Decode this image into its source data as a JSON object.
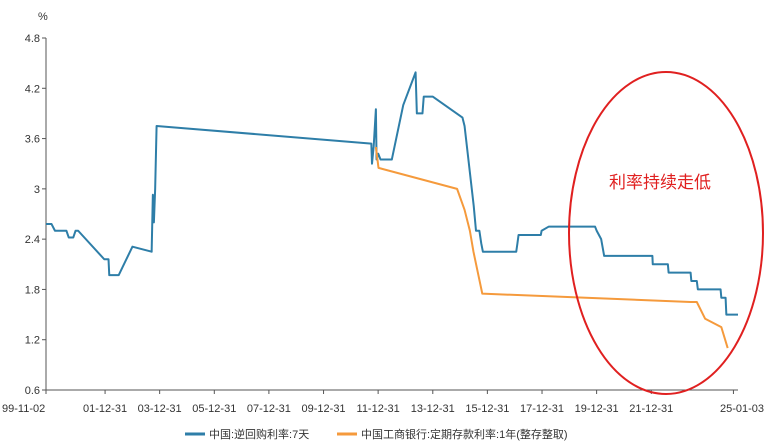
{
  "chart_data": {
    "type": "line",
    "y_unit": "%",
    "ylim": [
      0.6,
      4.8
    ],
    "y_ticks": [
      "0.6",
      "1.2",
      "1.8",
      "2.4",
      "3",
      "3.6",
      "4.2",
      "4.8"
    ],
    "x_range": [
      "1999-11-02",
      "2025-03-05"
    ],
    "x_ticks": [
      {
        "label": "99-11-02",
        "date": "1999-11-02"
      },
      {
        "label": "01-12-31",
        "date": "2001-12-31"
      },
      {
        "label": "03-12-31",
        "date": "2003-12-31"
      },
      {
        "label": "05-12-31",
        "date": "2005-12-31"
      },
      {
        "label": "07-12-31",
        "date": "2007-12-31"
      },
      {
        "label": "09-12-31",
        "date": "2009-12-31"
      },
      {
        "label": "11-12-31",
        "date": "2011-12-31"
      },
      {
        "label": "13-12-31",
        "date": "2013-12-31"
      },
      {
        "label": "15-12-31",
        "date": "2015-12-31"
      },
      {
        "label": "17-12-31",
        "date": "2017-12-31"
      },
      {
        "label": "19-12-31",
        "date": "2019-12-31"
      },
      {
        "label": "21-12-31",
        "date": "2021-12-31"
      },
      {
        "label": "25-01-03",
        "date": "2025-01-03"
      }
    ],
    "grid": false,
    "legend_position": "bottom-center",
    "series": [
      {
        "name": "中国:逆回购利率:7天",
        "color": "#2e7ea8",
        "points": [
          [
            "1999-11-02",
            2.58
          ],
          [
            "2000-01-15",
            2.58
          ],
          [
            "2000-03-01",
            2.5
          ],
          [
            "2000-08-01",
            2.5
          ],
          [
            "2000-09-01",
            2.42
          ],
          [
            "2000-11-01",
            2.42
          ],
          [
            "2000-12-01",
            2.5
          ],
          [
            "2001-01-05",
            2.5
          ],
          [
            "2001-12-20",
            2.16
          ],
          [
            "2002-02-15",
            2.16
          ],
          [
            "2002-02-25",
            1.97
          ],
          [
            "2002-07-01",
            1.97
          ],
          [
            "2003-01-01",
            2.31
          ],
          [
            "2003-09-15",
            2.25
          ],
          [
            "2003-10-01",
            2.93
          ],
          [
            "2003-10-15",
            2.6
          ],
          [
            "2003-11-01",
            3.0
          ],
          [
            "2003-11-20",
            3.75
          ],
          [
            "2011-10-01",
            3.54
          ],
          [
            "2011-10-10",
            3.3
          ],
          [
            "2011-11-01",
            3.5
          ],
          [
            "2011-12-01",
            3.95
          ],
          [
            "2011-12-10",
            3.35
          ],
          [
            "2012-01-01",
            3.42
          ],
          [
            "2012-02-01",
            3.35
          ],
          [
            "2012-07-01",
            3.35
          ],
          [
            "2012-12-01",
            4.0
          ],
          [
            "2013-05-15",
            4.39
          ],
          [
            "2013-06-01",
            3.9
          ],
          [
            "2013-08-15",
            3.9
          ],
          [
            "2013-09-01",
            4.1
          ],
          [
            "2014-01-01",
            4.1
          ],
          [
            "2015-02-01",
            3.85
          ],
          [
            "2015-03-01",
            3.75
          ],
          [
            "2015-07-01",
            2.8
          ],
          [
            "2015-08-01",
            2.5
          ],
          [
            "2015-09-15",
            2.5
          ],
          [
            "2015-10-10",
            2.35
          ],
          [
            "2015-11-01",
            2.25
          ],
          [
            "2016-01-15",
            2.25
          ],
          [
            "2017-01-20",
            2.25
          ],
          [
            "2017-02-05",
            2.35
          ],
          [
            "2017-02-20",
            2.45
          ],
          [
            "2017-12-15",
            2.45
          ],
          [
            "2017-12-25",
            2.5
          ],
          [
            "2018-04-01",
            2.55
          ],
          [
            "2019-12-10",
            2.55
          ],
          [
            "2020-01-01",
            2.5
          ],
          [
            "2020-03-01",
            2.4
          ],
          [
            "2020-04-10",
            2.2
          ],
          [
            "2022-01-15",
            2.2
          ],
          [
            "2022-01-20",
            2.1
          ],
          [
            "2022-08-10",
            2.1
          ],
          [
            "2022-08-20",
            2.0
          ],
          [
            "2023-06-10",
            2.0
          ],
          [
            "2023-06-20",
            1.9
          ],
          [
            "2023-09-01",
            1.9
          ],
          [
            "2023-09-15",
            1.8
          ],
          [
            "2024-07-15",
            1.8
          ],
          [
            "2024-07-25",
            1.7
          ],
          [
            "2024-09-20",
            1.7
          ],
          [
            "2024-09-30",
            1.5
          ],
          [
            "2025-03-05",
            1.5
          ]
        ]
      },
      {
        "name": "中国工商银行:定期存款利率:1年(整存整取)",
        "color": "#f59a3c",
        "points": [
          [
            "2011-12-01",
            3.5
          ],
          [
            "2012-01-05",
            3.25
          ],
          [
            "2014-11-21",
            3.0
          ],
          [
            "2015-03-01",
            2.75
          ],
          [
            "2015-05-11",
            2.5
          ],
          [
            "2015-06-28",
            2.25
          ],
          [
            "2015-08-26",
            2.0
          ],
          [
            "2015-10-24",
            1.75
          ],
          [
            "2023-06-08",
            1.65
          ],
          [
            "2023-09-01",
            1.65
          ],
          [
            "2023-12-22",
            1.45
          ],
          [
            "2024-07-25",
            1.35
          ],
          [
            "2024-10-18",
            1.1
          ]
        ]
      }
    ]
  },
  "annotation": {
    "text": "利率持续走低",
    "text_color": "#e02020",
    "ellipse_color": "#e02020"
  }
}
